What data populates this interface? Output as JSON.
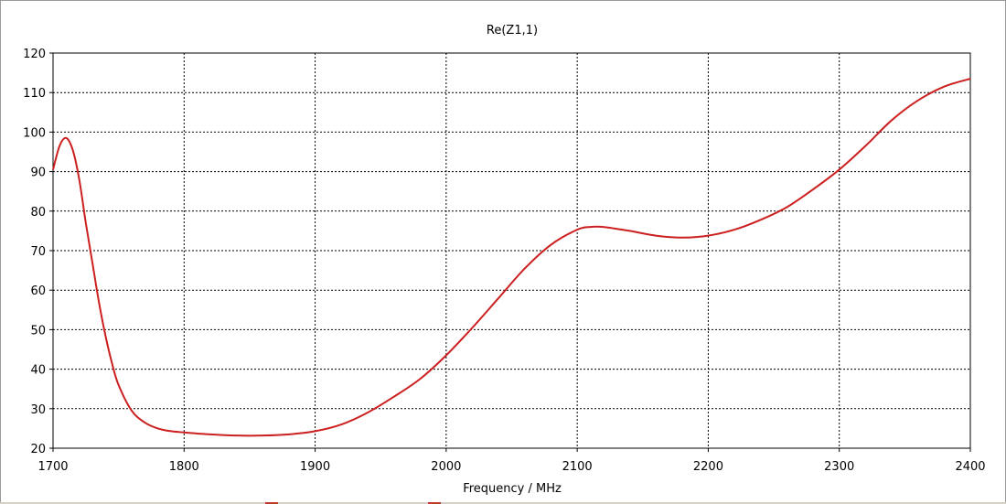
{
  "chart_data": {
    "type": "line",
    "title": "Re(Z1,1)",
    "xlabel": "Frequency / MHz",
    "ylabel": "",
    "xlim": [
      1700,
      2400
    ],
    "ylim": [
      20,
      120
    ],
    "xticks": [
      1700,
      1800,
      1900,
      2000,
      2100,
      2200,
      2300,
      2400
    ],
    "yticks": [
      20,
      30,
      40,
      50,
      60,
      70,
      80,
      90,
      100,
      110,
      120
    ],
    "grid": true,
    "series": [
      {
        "color": "#cc1f1f",
        "x": [
          1700,
          1705,
          1710,
          1715,
          1720,
          1725,
          1730,
          1735,
          1740,
          1745,
          1750,
          1760,
          1770,
          1780,
          1790,
          1800,
          1820,
          1840,
          1860,
          1880,
          1900,
          1920,
          1940,
          1960,
          1980,
          2000,
          2020,
          2040,
          2060,
          2080,
          2100,
          2110,
          2120,
          2140,
          2160,
          2180,
          2200,
          2220,
          2240,
          2260,
          2280,
          2300,
          2320,
          2340,
          2360,
          2380,
          2400
        ],
        "y": [
          90.5,
          96.5,
          98.5,
          95.5,
          88,
          77,
          67,
          57,
          48.5,
          41.5,
          36,
          29.5,
          26.5,
          25,
          24.3,
          24,
          23.5,
          23.2,
          23.2,
          23.5,
          24.3,
          26,
          29,
          33,
          37.5,
          43.5,
          50.5,
          58,
          65.5,
          71.5,
          75.3,
          76,
          76,
          75,
          73.8,
          73.3,
          73.8,
          75.3,
          77.8,
          81,
          85.5,
          90.5,
          96.5,
          103,
          108,
          111.5,
          113.5
        ]
      }
    ]
  }
}
